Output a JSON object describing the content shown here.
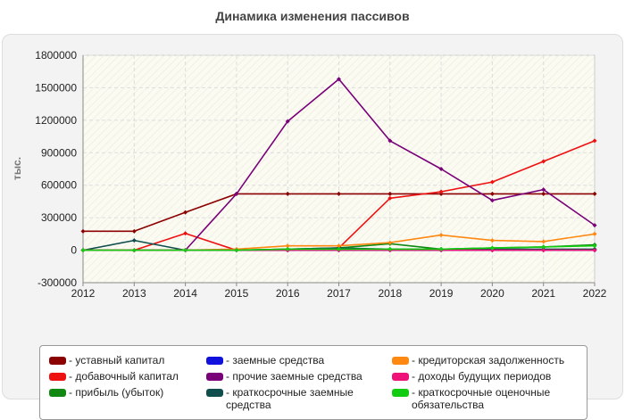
{
  "chart_data": {
    "type": "line",
    "title": "Динамика изменения пассивов",
    "xlabel": "",
    "ylabel": "тыс.",
    "ylim": [
      -300000,
      1800000
    ],
    "yticks": [
      "1800000",
      "1500000",
      "1200000",
      "900000",
      "600000",
      "300000",
      "0",
      "-300000"
    ],
    "ytick_values": [
      1800000,
      1500000,
      1200000,
      900000,
      600000,
      300000,
      0,
      -300000
    ],
    "categories": [
      "2012",
      "2013",
      "2014",
      "2015",
      "2016",
      "2017",
      "2018",
      "2019",
      "2020",
      "2021",
      "2022"
    ],
    "grid": true,
    "legend_position": "bottom",
    "series": [
      {
        "name": "уставный капитал",
        "color": "#8b0000",
        "values": [
          175000,
          175000,
          350000,
          520000,
          520000,
          520000,
          520000,
          520000,
          520000,
          520000,
          520000
        ]
      },
      {
        "name": "добавочный капитал",
        "color": "#ee1111",
        "values": [
          0,
          0,
          155000,
          0,
          0,
          20000,
          480000,
          540000,
          630000,
          820000,
          1010000
        ]
      },
      {
        "name": "прибыль (убыток)",
        "color": "#118811",
        "values": [
          0,
          0,
          0,
          0,
          10000,
          20000,
          60000,
          10000,
          20000,
          30000,
          50000
        ]
      },
      {
        "name": "заемные средства",
        "color": "#1111dd",
        "values": [
          0,
          0,
          0,
          0,
          0,
          0,
          0,
          0,
          0,
          0,
          0
        ]
      },
      {
        "name": "прочие заемные средства",
        "color": "#7a007a",
        "values": [
          0,
          0,
          0,
          520000,
          1190000,
          1580000,
          1010000,
          750000,
          460000,
          560000,
          230000
        ]
      },
      {
        "name": "краткосрочные заемные средства",
        "color": "#104e4e",
        "values": [
          0,
          90000,
          0,
          0,
          10000,
          20000,
          10000,
          10000,
          10000,
          10000,
          10000
        ]
      },
      {
        "name": "кредиторская задолженность",
        "color": "#ff8811",
        "values": [
          0,
          0,
          0,
          10000,
          40000,
          40000,
          70000,
          140000,
          90000,
          80000,
          150000
        ]
      },
      {
        "name": "доходы будущих периодов",
        "color": "#ee1177",
        "values": [
          0,
          0,
          0,
          0,
          0,
          0,
          0,
          0,
          0,
          0,
          0
        ]
      },
      {
        "name": "краткосрочные оценочные обязательства",
        "color": "#11cc11",
        "values": [
          0,
          0,
          0,
          0,
          10000,
          10000,
          10000,
          10000,
          20000,
          30000,
          40000
        ]
      }
    ]
  }
}
